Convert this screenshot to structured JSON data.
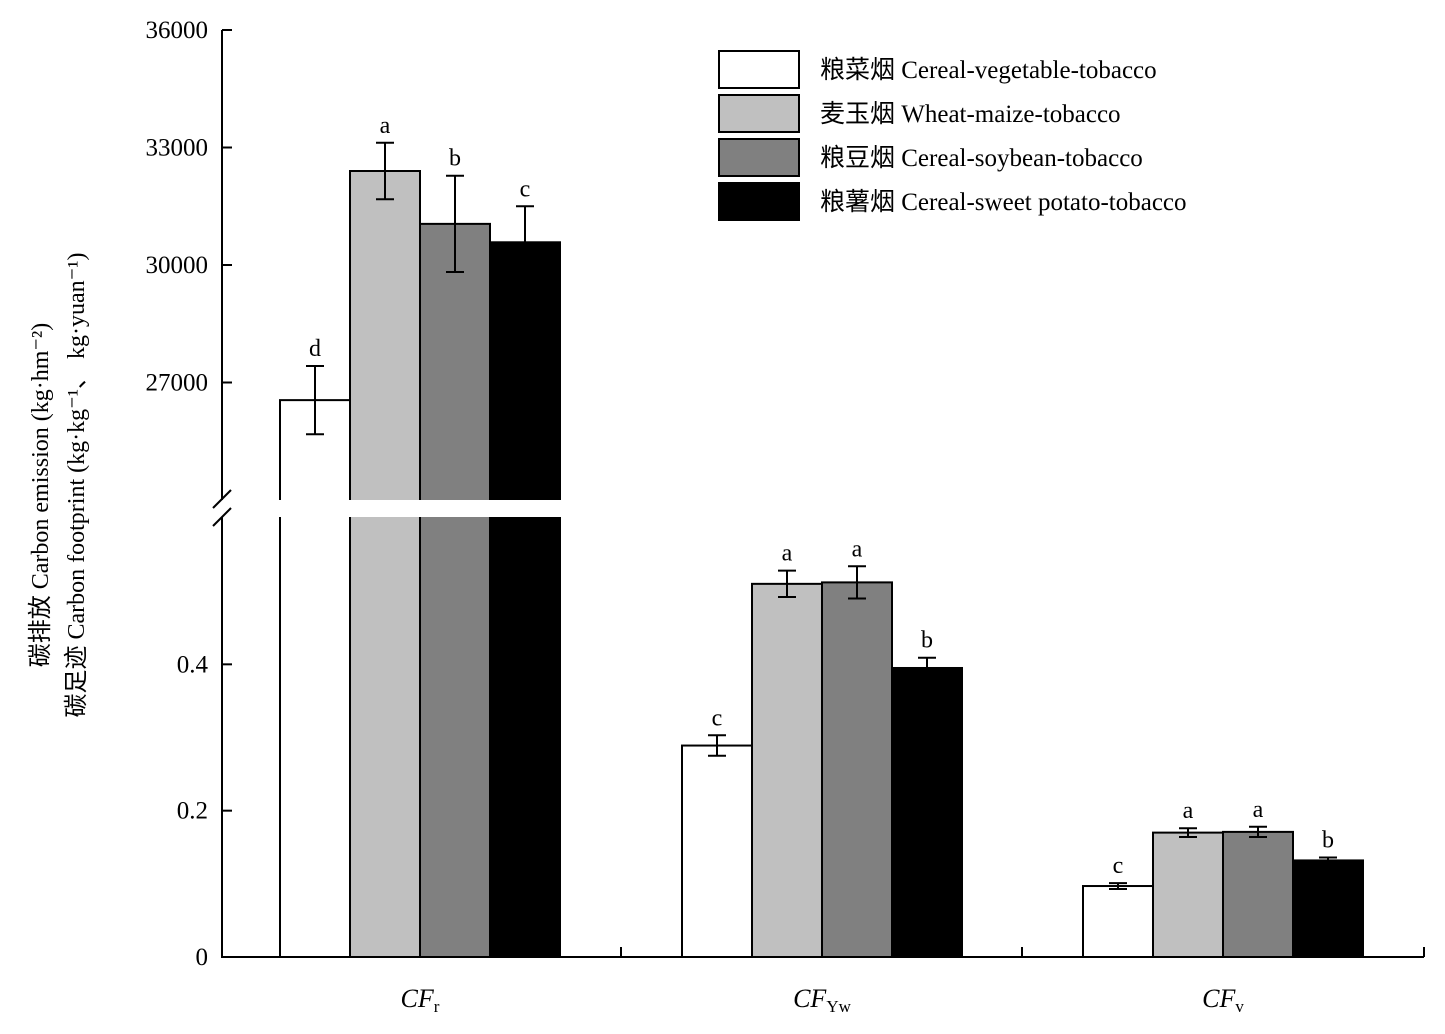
{
  "chart_data": {
    "type": "bar",
    "categories": [
      {
        "main": "CF",
        "sub": "r"
      },
      {
        "main": "CF",
        "sub": "Yw"
      },
      {
        "main": "CF",
        "sub": "v"
      }
    ],
    "series": [
      {
        "name": "粮菜烟 Cereal-vegetable-tobacco",
        "color": "#ffffff",
        "values": [
          26550,
          0.289,
          0.097
        ],
        "errors": [
          870,
          0.014,
          0.004
        ],
        "letters": [
          "d",
          "c",
          "c"
        ]
      },
      {
        "name": "麦玉烟 Wheat-maize-tobacco",
        "color": "#c0c0c0",
        "values": [
          32400,
          0.51,
          0.17
        ],
        "errors": [
          720,
          0.018,
          0.006
        ],
        "letters": [
          "a",
          "a",
          "a"
        ]
      },
      {
        "name": "粮豆烟 Cereal-soybean-tobacco",
        "color": "#808080",
        "values": [
          31050,
          0.512,
          0.171
        ],
        "errors": [
          1230,
          0.022,
          0.007
        ],
        "letters": [
          "b",
          "a",
          "a"
        ]
      },
      {
        "name": "粮薯烟 Cereal-sweet potato-tobacco",
        "color": "#000000",
        "values": [
          30580,
          0.395,
          0.132
        ],
        "errors": [
          920,
          0.014,
          0.004
        ],
        "letters": [
          "c",
          "b",
          "b"
        ]
      }
    ],
    "axis": {
      "lower_ticks": [
        {
          "value": 0,
          "label": "0"
        },
        {
          "value": 0.2,
          "label": "0.2"
        },
        {
          "value": 0.4,
          "label": "0.4"
        }
      ],
      "upper_ticks": [
        {
          "value": 27000,
          "label": "27000"
        },
        {
          "value": 30000,
          "label": "30000"
        },
        {
          "value": 33000,
          "label": "33000"
        },
        {
          "value": 36000,
          "label": "36000"
        }
      ],
      "lower_range": [
        0,
        0.6
      ],
      "upper_range": [
        24000,
        36000
      ],
      "broken": true
    },
    "ylabel_line1": "碳排放 Carbon emission (kg·hm⁻²)",
    "ylabel_line2": "碳足迹 Carbon footprint (kg·kg⁻¹、 kg·yuan⁻¹)",
    "legend_position": "top-right"
  }
}
